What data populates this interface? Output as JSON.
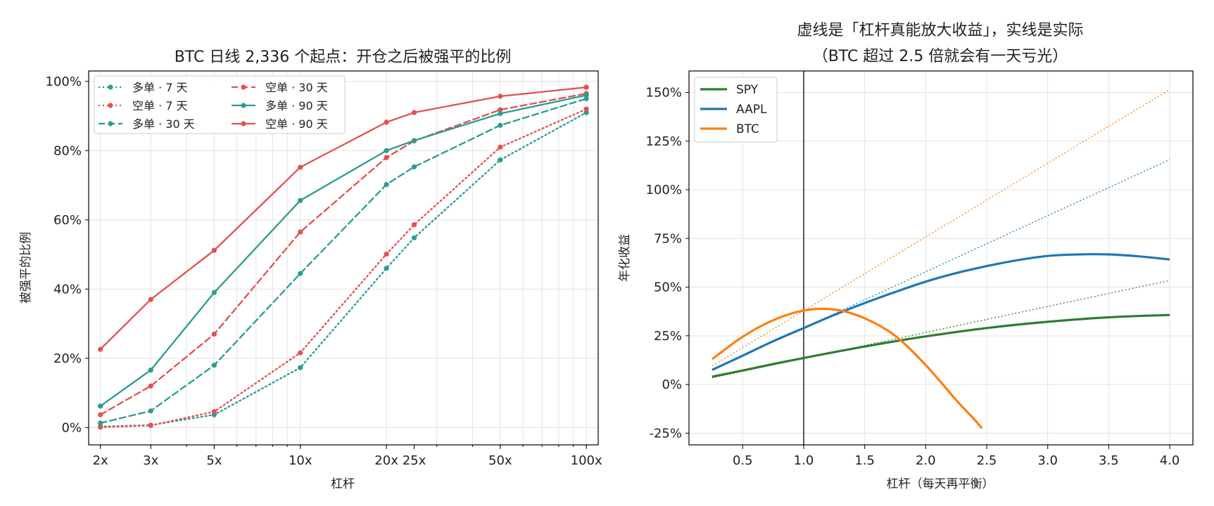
{
  "chart_data": [
    {
      "type": "line",
      "title": "BTC 日线 2,336 个起点：开仓之后被强平的比例",
      "xlabel": "杠杆",
      "ylabel": "被强平的比例",
      "xscale": "log",
      "x_ticks": [
        2,
        3,
        5,
        10,
        20,
        25,
        50,
        100
      ],
      "x_tick_labels": [
        "2x",
        "3x",
        "5x",
        "10x",
        "20x",
        "25x",
        "50x",
        "100x"
      ],
      "xlim": [
        1.82,
        110
      ],
      "ylim": [
        -0.05,
        1.03
      ],
      "y_ticks": [
        0,
        0.2,
        0.4,
        0.6,
        0.8,
        1.0
      ],
      "y_tick_labels": [
        "0%",
        "20%",
        "40%",
        "60%",
        "80%",
        "100%"
      ],
      "grid": true,
      "legend_position": "top-left",
      "legend_columns": 2,
      "x": [
        2,
        3,
        5,
        10,
        20,
        25,
        50,
        100
      ],
      "series": [
        {
          "name": "多单 · 7 天",
          "color": "#2a9d8f",
          "dash": "dotted",
          "values": [
            0.003,
            0.007,
            0.037,
            0.173,
            0.46,
            0.548,
            0.773,
            0.91
          ]
        },
        {
          "name": "空单 · 7 天",
          "color": "#e55050",
          "dash": "dotted",
          "values": [
            0.001,
            0.006,
            0.046,
            0.216,
            0.501,
            0.586,
            0.81,
            0.92
          ]
        },
        {
          "name": "多单 · 30 天",
          "color": "#2a9d8f",
          "dash": "dashed",
          "values": [
            0.013,
            0.048,
            0.18,
            0.445,
            0.702,
            0.753,
            0.873,
            0.95
          ]
        },
        {
          "name": "空单 · 30 天",
          "color": "#e55050",
          "dash": "dashed",
          "values": [
            0.037,
            0.12,
            0.27,
            0.565,
            0.78,
            0.828,
            0.918,
            0.965
          ]
        },
        {
          "name": "多单 · 90 天",
          "color": "#2a9d8f",
          "dash": "solid",
          "values": [
            0.062,
            0.166,
            0.39,
            0.656,
            0.8,
            0.829,
            0.907,
            0.96
          ]
        },
        {
          "name": "空单 · 90 天",
          "color": "#e55050",
          "dash": "solid",
          "values": [
            0.226,
            0.37,
            0.512,
            0.752,
            0.882,
            0.91,
            0.957,
            0.983
          ]
        }
      ]
    },
    {
      "type": "line",
      "title": "虚线是「杠杆真能放大收益」，实线是实际",
      "subtitle": "（BTC 超过 2.5 倍就会有一天亏光）",
      "xlabel": "杠杆（每天再平衡）",
      "ylabel": "年化收益",
      "xlim": [
        0.06,
        4.19
      ],
      "ylim": [
        -0.31,
        1.61
      ],
      "x_ticks": [
        0.5,
        1.0,
        1.5,
        2.0,
        2.5,
        3.0,
        3.5,
        4.0
      ],
      "x_tick_labels": [
        "0.5",
        "1.0",
        "1.5",
        "2.0",
        "2.5",
        "3.0",
        "3.5",
        "4.0"
      ],
      "y_ticks": [
        -0.25,
        0,
        0.25,
        0.5,
        0.75,
        1.0,
        1.25,
        1.5
      ],
      "y_tick_labels": [
        "-25%",
        "0%",
        "25%",
        "50%",
        "75%",
        "100%",
        "125%",
        "150%"
      ],
      "vline_x": 1.0,
      "grid": true,
      "legend_position": "top-left",
      "series": [
        {
          "name": "SPY",
          "color": "#2e7d32",
          "x": [
            0.25,
            0.5,
            0.75,
            1.0,
            1.25,
            1.5,
            1.75,
            2.0,
            2.5,
            3.0,
            3.5,
            4.0
          ],
          "values": [
            0.04,
            0.072,
            0.105,
            0.136,
            0.166,
            0.195,
            0.222,
            0.247,
            0.29,
            0.322,
            0.345,
            0.357
          ],
          "ideal": [
            0.034,
            0.534
          ]
        },
        {
          "name": "AAPL",
          "color": "#1f77b4",
          "x": [
            0.25,
            0.5,
            0.75,
            1.0,
            1.25,
            1.5,
            1.75,
            2.0,
            2.25,
            2.5,
            2.75,
            3.0,
            3.25,
            3.5,
            3.75,
            4.0
          ],
          "values": [
            0.075,
            0.148,
            0.222,
            0.29,
            0.357,
            0.418,
            0.475,
            0.528,
            0.572,
            0.608,
            0.638,
            0.66,
            0.668,
            0.668,
            0.658,
            0.642
          ],
          "ideal": [
            0.075,
            1.155
          ]
        },
        {
          "name": "BTC",
          "color": "#ff7f0e",
          "x": [
            0.25,
            0.5,
            0.75,
            1.0,
            1.25,
            1.5,
            1.75,
            2.0,
            2.25,
            2.4,
            2.46
          ],
          "values": [
            0.13,
            0.245,
            0.33,
            0.38,
            0.385,
            0.34,
            0.25,
            0.1,
            -0.08,
            -0.18,
            -0.225
          ],
          "ideal": [
            0.095,
            1.515
          ]
        }
      ]
    }
  ]
}
